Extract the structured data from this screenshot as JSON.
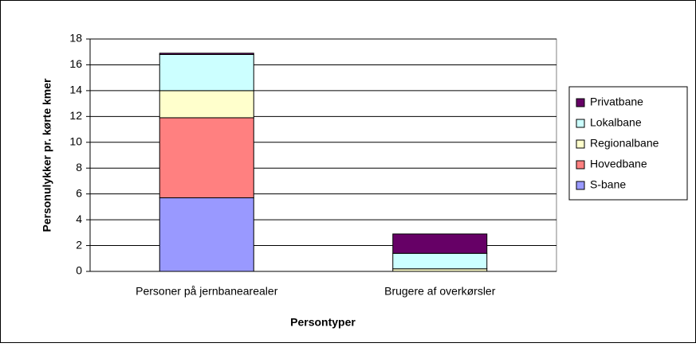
{
  "chart_data": {
    "type": "stacked-bar",
    "x_label": "Persontyper",
    "y_label": "Personulykker pr. kørte kmer",
    "categories": [
      "Personer på jernbanearealer",
      "Brugere af overkørsler"
    ],
    "series": [
      {
        "name": "S-bane",
        "color": "#9999ff",
        "values": [
          5.7,
          0
        ]
      },
      {
        "name": "Hovedbane",
        "color": "#ff8080",
        "values": [
          6.2,
          0
        ]
      },
      {
        "name": "Regionalbane",
        "color": "#ffffcc",
        "values": [
          2.1,
          0.2
        ]
      },
      {
        "name": "Lokalbane",
        "color": "#ccffff",
        "values": [
          2.8,
          1.2
        ]
      },
      {
        "name": "Privatbane",
        "color": "#660066",
        "values": [
          0.1,
          1.5
        ]
      }
    ],
    "ylim": [
      0,
      18
    ],
    "yticks": [
      0,
      2,
      4,
      6,
      8,
      10,
      12,
      14,
      16,
      18
    ],
    "grid": true
  }
}
